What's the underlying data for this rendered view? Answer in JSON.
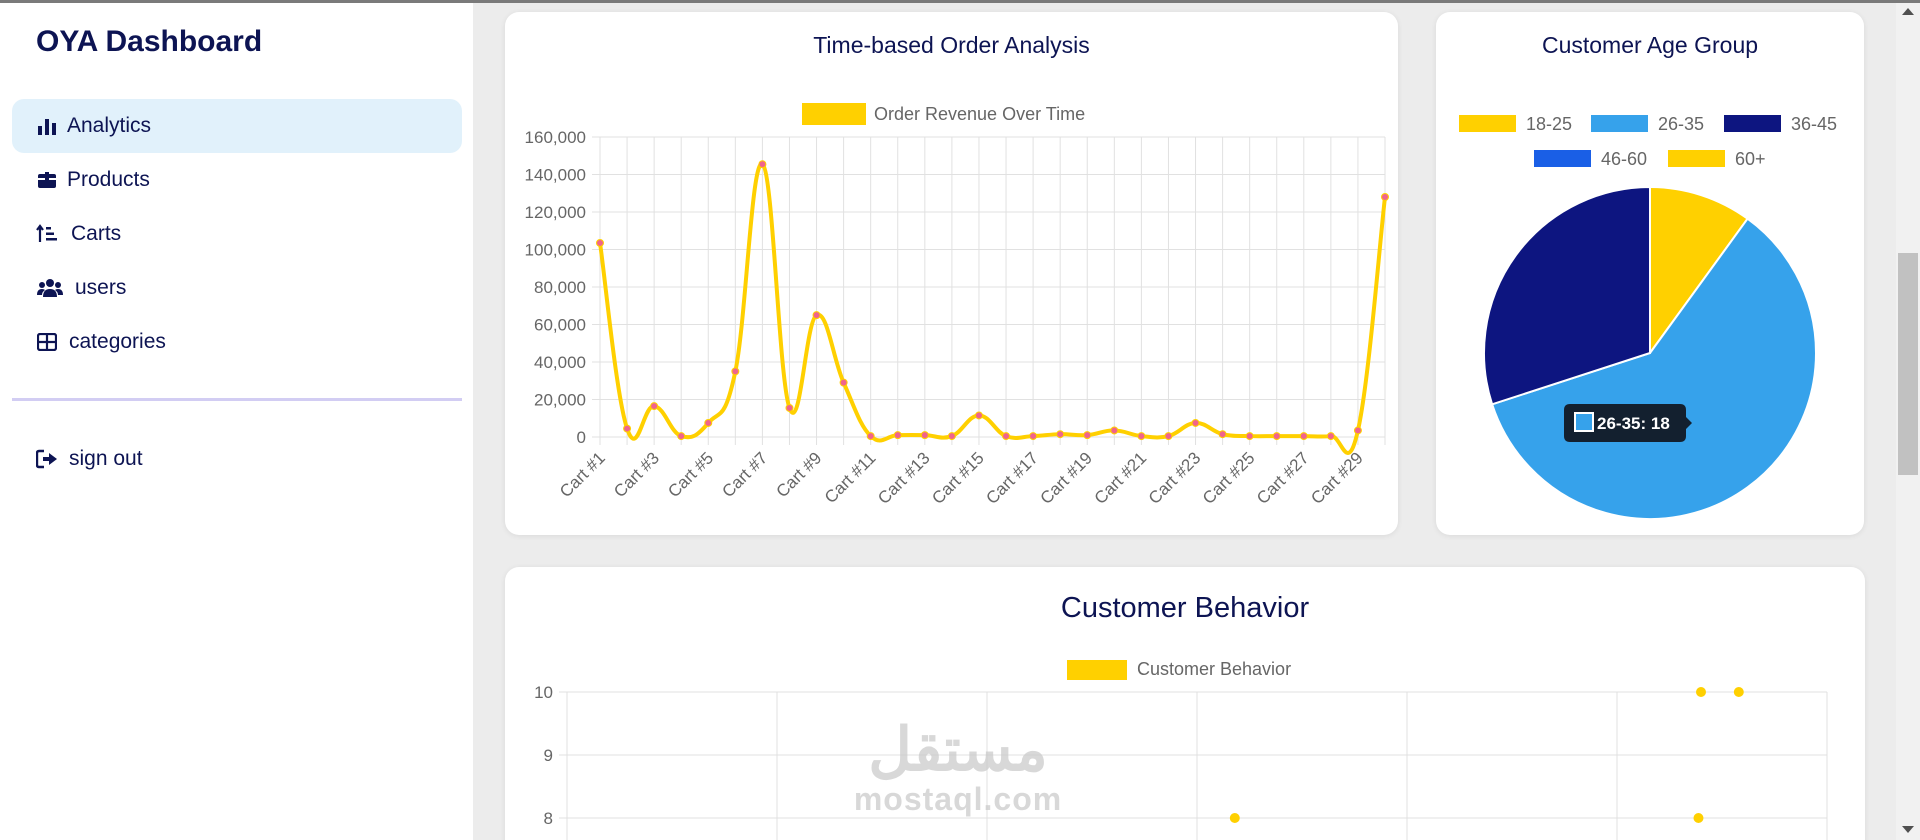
{
  "sidebar": {
    "brand": "OYA Dashboard",
    "items": [
      {
        "label": "Analytics",
        "icon": "bar-chart-icon",
        "active": true
      },
      {
        "label": "Products",
        "icon": "box-icon",
        "active": false
      },
      {
        "label": "Carts",
        "icon": "sort-icon",
        "active": false
      },
      {
        "label": "users",
        "icon": "users-icon",
        "active": false
      },
      {
        "label": "categories",
        "icon": "grid-icon",
        "active": false
      }
    ],
    "signout": {
      "label": "sign out",
      "icon": "sign-out-icon"
    }
  },
  "colors": {
    "navy": "#0d1453",
    "active_bg": "#e1f1fb",
    "yellow": "#ffd000",
    "blue": "#36a2eb",
    "dark_navy": "#0d1580",
    "royal_blue": "#1a5fe6",
    "point_pink": "#f0648c"
  },
  "watermark": {
    "arabic": "مستقل",
    "latin": "mostaql.com"
  },
  "chart_data": [
    {
      "type": "line",
      "title": "Time-based Order Analysis",
      "legend": {
        "position": "top",
        "entries": [
          "Order Revenue Over Time"
        ]
      },
      "x_tick_labels": [
        "Cart #1",
        "Cart #3",
        "Cart #5",
        "Cart #7",
        "Cart #9",
        "Cart #11",
        "Cart #13",
        "Cart #15",
        "Cart #17",
        "Cart #19",
        "Cart #21",
        "Cart #23",
        "Cart #25",
        "Cart #27",
        "Cart #29"
      ],
      "y_tick_labels": [
        "0",
        "20,000",
        "40,000",
        "60,000",
        "80,000",
        "100,000",
        "120,000",
        "140,000",
        "160,000"
      ],
      "ylim": [
        0,
        160000
      ],
      "grid": true,
      "series": [
        {
          "name": "Order Revenue Over Time",
          "x": [
            "Cart #1",
            "Cart #2",
            "Cart #3",
            "Cart #4",
            "Cart #5",
            "Cart #6",
            "Cart #7",
            "Cart #8",
            "Cart #9",
            "Cart #10",
            "Cart #11",
            "Cart #12",
            "Cart #13",
            "Cart #14",
            "Cart #15",
            "Cart #16",
            "Cart #17",
            "Cart #18",
            "Cart #19",
            "Cart #20",
            "Cart #21",
            "Cart #22",
            "Cart #23",
            "Cart #24",
            "Cart #25",
            "Cart #26",
            "Cart #27",
            "Cart #28",
            "Cart #29",
            "Cart #30"
          ],
          "values": [
            103500,
            4500,
            16500,
            500,
            7500,
            35000,
            145500,
            15500,
            65000,
            29000,
            500,
            1000,
            1000,
            500,
            11500,
            500,
            500,
            1500,
            1000,
            3500,
            500,
            500,
            7500,
            1500,
            500,
            500,
            500,
            500,
            3500,
            128000
          ]
        }
      ]
    },
    {
      "type": "pie",
      "title": "Customer Age Group",
      "legend": {
        "position": "top",
        "entries": [
          "18-25",
          "26-35",
          "36-45",
          "46-60",
          "60+"
        ]
      },
      "categories": [
        "18-25",
        "26-35",
        "36-45",
        "46-60",
        "60+"
      ],
      "values": [
        3,
        18,
        9,
        0,
        0
      ],
      "tooltip": "26-35: 18"
    },
    {
      "type": "scatter",
      "title": "Customer Behavior",
      "legend": {
        "position": "top",
        "entries": [
          "Customer Behavior"
        ]
      },
      "y_tick_labels": [
        "10",
        "9",
        "8"
      ],
      "grid": true,
      "series": [
        {
          "name": "Customer Behavior",
          "points": [
            [
              0.53,
              8
            ],
            [
              0.9,
              10
            ],
            [
              0.93,
              10
            ],
            [
              0.898,
              8
            ]
          ]
        }
      ]
    }
  ]
}
